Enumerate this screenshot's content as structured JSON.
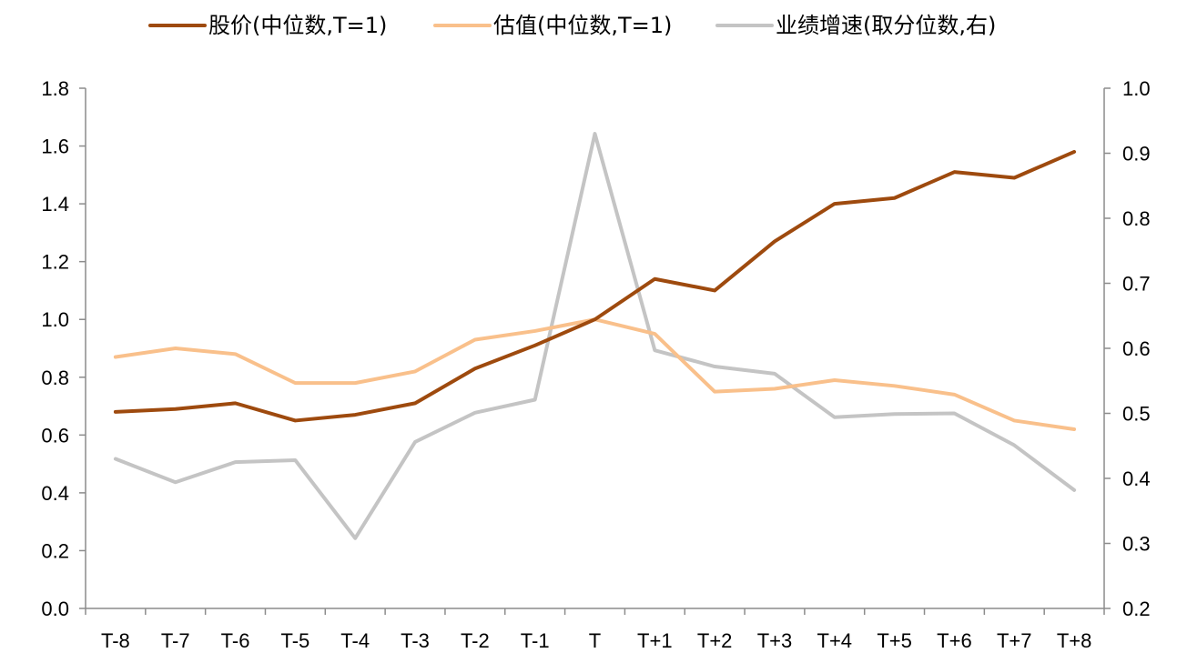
{
  "chart_data": {
    "type": "line",
    "title": "",
    "xlabel": "",
    "ylabel": "",
    "y2label": "",
    "categories": [
      "T-8",
      "T-7",
      "T-6",
      "T-5",
      "T-4",
      "T-3",
      "T-2",
      "T-1",
      "T",
      "T+1",
      "T+2",
      "T+3",
      "T+4",
      "T+5",
      "T+6",
      "T+7",
      "T+8"
    ],
    "ylim": [
      0.0,
      1.8
    ],
    "y2lim": [
      0.2,
      1.0
    ],
    "yticks": [
      "0.0",
      "0.2",
      "0.4",
      "0.6",
      "0.8",
      "1.0",
      "1.2",
      "1.4",
      "1.6",
      "1.8"
    ],
    "y2ticks": [
      "0.2",
      "0.3",
      "0.4",
      "0.5",
      "0.6",
      "0.7",
      "0.8",
      "0.9",
      "1.0"
    ],
    "grid": false,
    "legend_position": "top",
    "series": [
      {
        "name": "股价(中位数,T=1)",
        "axis": "left",
        "color": "#9e4a0e",
        "values": [
          0.68,
          0.69,
          0.71,
          0.65,
          0.67,
          0.71,
          0.83,
          0.91,
          1.0,
          1.14,
          1.1,
          1.27,
          1.4,
          1.42,
          1.51,
          1.49,
          1.58
        ]
      },
      {
        "name": "估值(中位数,T=1)",
        "axis": "left",
        "color": "#f9c08b",
        "values": [
          0.87,
          0.9,
          0.88,
          0.78,
          0.78,
          0.82,
          0.93,
          0.96,
          1.0,
          0.95,
          0.75,
          0.76,
          0.79,
          0.77,
          0.74,
          0.65,
          0.62
        ]
      },
      {
        "name": "业绩增速(取分位数,右)",
        "axis": "right",
        "color": "#c4c4c4",
        "values": [
          0.43,
          0.394,
          0.425,
          0.428,
          0.308,
          0.456,
          0.501,
          0.521,
          0.93,
          0.597,
          0.572,
          0.561,
          0.494,
          0.499,
          0.5,
          0.451,
          0.382
        ]
      }
    ]
  }
}
